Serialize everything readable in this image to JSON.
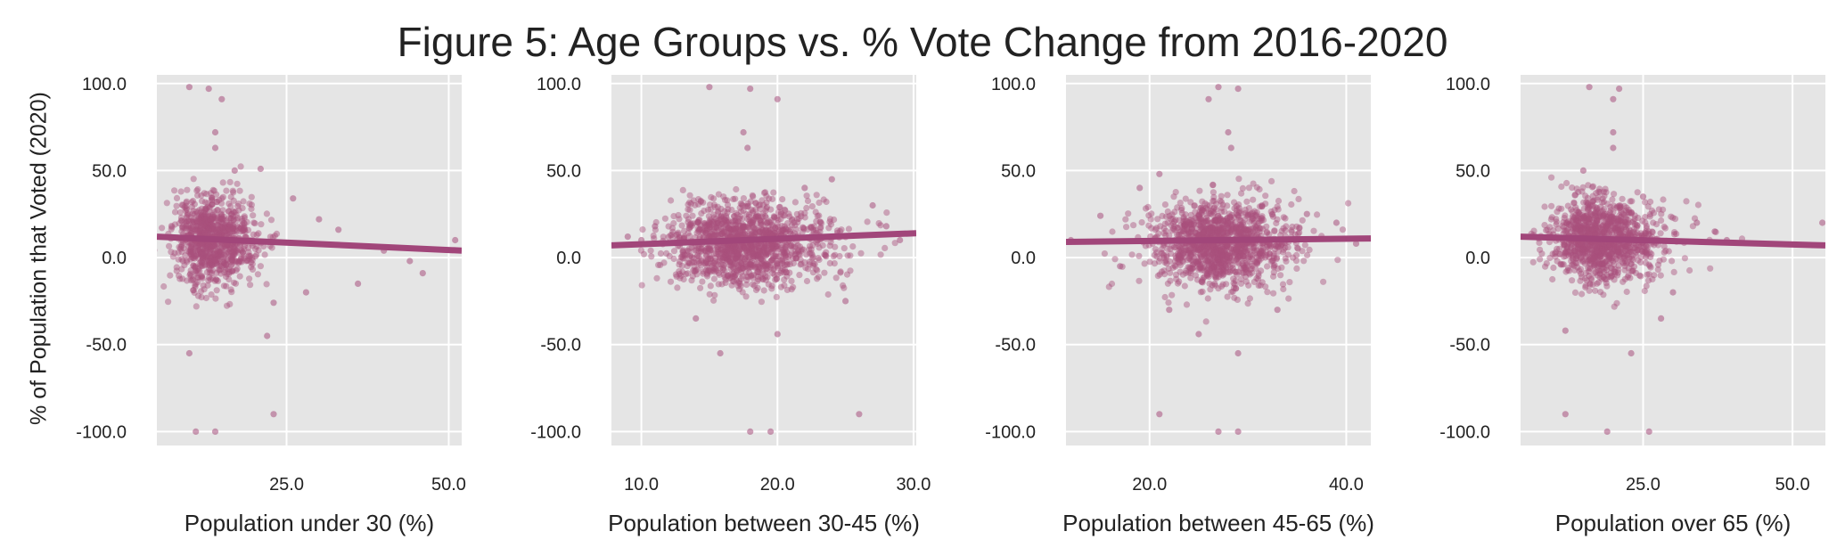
{
  "title": "Figure 5: Age Groups vs. % Vote Change from 2016-2020",
  "ylabel": "% of Population that Voted (2020)",
  "colors": {
    "panel_bg": "#e5e5e5",
    "grid": "#ffffff",
    "points": "#a8507d",
    "line": "#a1467a"
  },
  "chart_data": [
    {
      "type": "scatter",
      "xlabel": "Population under 30 (%)",
      "xlim": [
        5,
        52
      ],
      "ylim": [
        -108,
        105
      ],
      "xticks": [
        {
          "value": 25,
          "label": "25.0"
        },
        {
          "value": 50,
          "label": "50.0"
        }
      ],
      "yticks": [
        {
          "value": 100,
          "label": "100.0"
        },
        {
          "value": 50,
          "label": "50.0"
        },
        {
          "value": 0,
          "label": "0.0"
        },
        {
          "value": -50,
          "label": "-50.0"
        },
        {
          "value": -100,
          "label": "-100.0"
        }
      ],
      "trend": {
        "x": [
          5,
          52
        ],
        "y": [
          12,
          4
        ]
      },
      "cluster": {
        "mx": 13.5,
        "sx": 2.8,
        "my": 10,
        "sy": 13,
        "n": 900,
        "tail": 0.5
      },
      "outliers": [
        [
          10,
          98
        ],
        [
          13,
          97
        ],
        [
          15,
          91
        ],
        [
          14,
          72
        ],
        [
          14,
          63
        ],
        [
          17,
          50
        ],
        [
          21,
          51
        ],
        [
          10,
          -55
        ],
        [
          11,
          -100
        ],
        [
          14,
          -100
        ],
        [
          23,
          -90
        ],
        [
          23,
          -26
        ],
        [
          28,
          -20
        ],
        [
          36,
          -15
        ],
        [
          46,
          -9
        ],
        [
          44,
          -2
        ],
        [
          40,
          4
        ],
        [
          51,
          10
        ],
        [
          33,
          16
        ],
        [
          30,
          22
        ],
        [
          26,
          34
        ],
        [
          22,
          -45
        ]
      ]
    },
    {
      "type": "scatter",
      "xlabel": "Population between 30-45 (%)",
      "xlim": [
        7.8,
        30.2
      ],
      "ylim": [
        -108,
        105
      ],
      "xticks": [
        {
          "value": 10,
          "label": "10.0"
        },
        {
          "value": 20,
          "label": "20.0"
        },
        {
          "value": 30,
          "label": "30.0"
        }
      ],
      "yticks": [
        {
          "value": 100,
          "label": "100.0"
        },
        {
          "value": 50,
          "label": "50.0"
        },
        {
          "value": 0,
          "label": "0.0"
        },
        {
          "value": -50,
          "label": "-50.0"
        },
        {
          "value": -100,
          "label": "-100.0"
        }
      ],
      "trend": {
        "x": [
          7.8,
          30.2
        ],
        "y": [
          7,
          14
        ]
      },
      "cluster": {
        "mx": 17.5,
        "sx": 2.6,
        "my": 8,
        "sy": 12,
        "n": 1300,
        "tail": 0.4
      },
      "outliers": [
        [
          15,
          98
        ],
        [
          18,
          97
        ],
        [
          20,
          91
        ],
        [
          17.5,
          72
        ],
        [
          17.8,
          63
        ],
        [
          15.8,
          -55
        ],
        [
          18,
          -100
        ],
        [
          19.5,
          -100
        ],
        [
          26,
          -90
        ],
        [
          11,
          18
        ],
        [
          10,
          10
        ],
        [
          9,
          12
        ],
        [
          27,
          30
        ],
        [
          28,
          18
        ],
        [
          29,
          10
        ],
        [
          24,
          45
        ],
        [
          22,
          40
        ],
        [
          20,
          -44
        ],
        [
          14,
          -35
        ],
        [
          25,
          -25
        ]
      ]
    },
    {
      "type": "scatter",
      "xlabel": "Population between 45-65 (%)",
      "xlim": [
        11.5,
        42.5
      ],
      "ylim": [
        -108,
        105
      ],
      "xticks": [
        {
          "value": 20,
          "label": "20.0"
        },
        {
          "value": 40,
          "label": "40.0"
        }
      ],
      "yticks": [
        {
          "value": 100,
          "label": "100.0"
        },
        {
          "value": 50,
          "label": "50.0"
        },
        {
          "value": 0,
          "label": "0.0"
        },
        {
          "value": -50,
          "label": "-50.0"
        },
        {
          "value": -100,
          "label": "-100.0"
        }
      ],
      "trend": {
        "x": [
          11.5,
          42.5
        ],
        "y": [
          9,
          11
        ]
      },
      "cluster": {
        "mx": 27,
        "sx": 3.2,
        "my": 8,
        "sy": 12,
        "n": 1300,
        "tail": 0.4
      },
      "outliers": [
        [
          27,
          98
        ],
        [
          29,
          97
        ],
        [
          26,
          91
        ],
        [
          28,
          72
        ],
        [
          28.3,
          63
        ],
        [
          21,
          -90
        ],
        [
          27,
          -100
        ],
        [
          29,
          -100
        ],
        [
          29,
          -55
        ],
        [
          12,
          10
        ],
        [
          15,
          24
        ],
        [
          17,
          -5
        ],
        [
          19,
          40
        ],
        [
          21,
          48
        ],
        [
          36,
          25
        ],
        [
          39,
          20
        ],
        [
          41,
          8
        ],
        [
          33,
          -30
        ],
        [
          25,
          -44
        ],
        [
          22,
          -30
        ]
      ]
    },
    {
      "type": "scatter",
      "xlabel": "Population over 65 (%)",
      "xlim": [
        4.5,
        55.5
      ],
      "ylim": [
        -108,
        105
      ],
      "xticks": [
        {
          "value": 25,
          "label": "25.0"
        },
        {
          "value": 50,
          "label": "50.0"
        }
      ],
      "yticks": [
        {
          "value": 100,
          "label": "100.0"
        },
        {
          "value": 50,
          "label": "50.0"
        },
        {
          "value": 0,
          "label": "0.0"
        },
        {
          "value": -50,
          "label": "-50.0"
        },
        {
          "value": -100,
          "label": "-100.0"
        }
      ],
      "trend": {
        "x": [
          4.5,
          55.5
        ],
        "y": [
          12,
          7
        ]
      },
      "cluster": {
        "mx": 18,
        "sx": 4,
        "my": 10,
        "sy": 12,
        "n": 1100,
        "tail": 0.6
      },
      "outliers": [
        [
          16,
          98
        ],
        [
          21,
          97
        ],
        [
          20,
          91
        ],
        [
          20,
          72
        ],
        [
          20,
          63
        ],
        [
          15,
          50
        ],
        [
          12,
          -90
        ],
        [
          19,
          -100
        ],
        [
          26,
          -100
        ],
        [
          23,
          -55
        ],
        [
          34,
          20
        ],
        [
          37,
          15
        ],
        [
          39,
          10
        ],
        [
          55,
          20
        ],
        [
          30,
          -20
        ],
        [
          12,
          -42
        ],
        [
          28,
          -35
        ],
        [
          25,
          35
        ]
      ]
    }
  ]
}
